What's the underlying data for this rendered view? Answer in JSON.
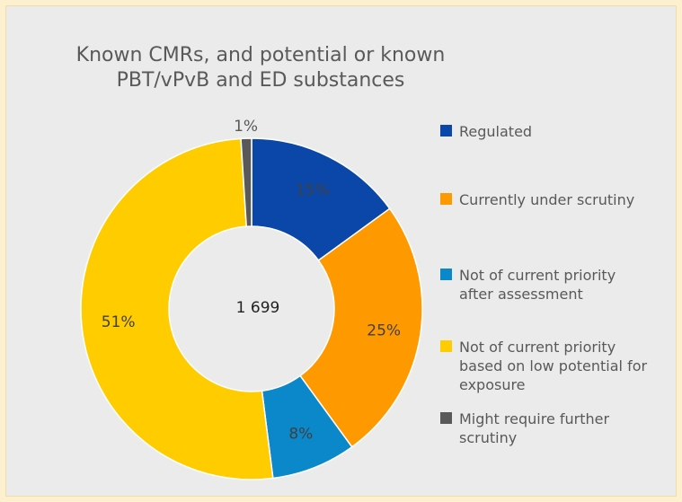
{
  "chart_data": {
    "type": "pie",
    "title": "Known CMRs, and potential or known PBT/vPvB and ED substances",
    "title_lines": [
      "Known CMRs, and potential or known",
      "PBT/vPvB and ED substances"
    ],
    "center_label": "1 699",
    "labels": [
      "Regulated",
      "Currently under scrutiny",
      "Not of current priority after assessment",
      "Not of current priority based on low potential for exposure",
      "Might require further scrutiny"
    ],
    "label_lines": [
      [
        "Regulated"
      ],
      [
        "Currently under scrutiny"
      ],
      [
        "Not of current priority",
        "after assessment"
      ],
      [
        "Not of current priority",
        "based on low potential for",
        "exposure"
      ],
      [
        "Might require further",
        "scrutiny"
      ]
    ],
    "values": [
      15,
      25,
      8,
      51,
      1
    ],
    "value_labels": [
      "15%",
      "25%",
      "8%",
      "51%",
      "1%"
    ],
    "colors": [
      "#0a47a8",
      "#ff9900",
      "#0b88c9",
      "#ffcc00",
      "#595959"
    ],
    "legend_position": "right"
  }
}
